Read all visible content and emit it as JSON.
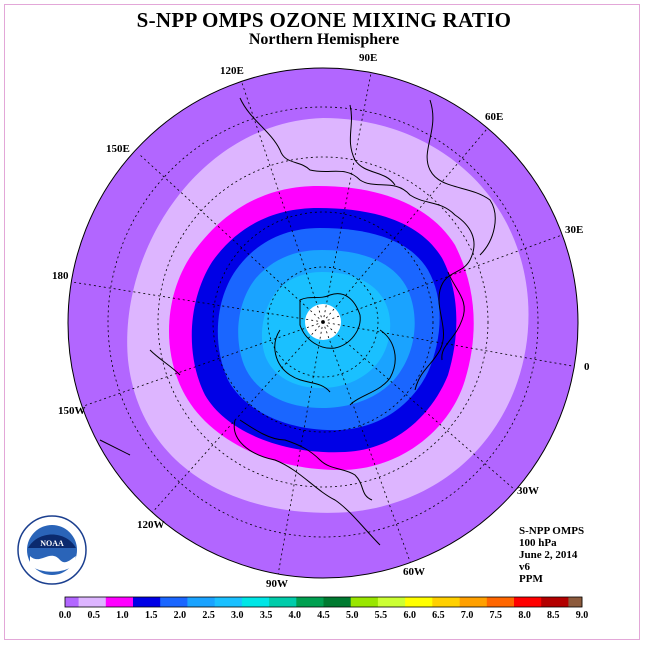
{
  "title": "S-NPP OMPS OZONE MIXING RATIO",
  "subtitle": "Northern Hemisphere",
  "longitude_labels": [
    "120E",
    "90E",
    "60E",
    "150E",
    "30E",
    "180",
    "0",
    "150W",
    "30W",
    "120W",
    "90W",
    "60W"
  ],
  "info": {
    "instrument": "S-NPP OMPS",
    "level": "100 hPa",
    "date": "June 2, 2014",
    "version": "v6",
    "units": "PPM"
  },
  "logo": {
    "text": "NOAA"
  },
  "colorbar": {
    "ticks": [
      "0.0",
      "0.5",
      "1.0",
      "1.5",
      "2.0",
      "2.5",
      "3.0",
      "3.5",
      "4.0",
      "4.5",
      "5.0",
      "5.5",
      "6.0",
      "6.5",
      "7.0",
      "7.5",
      "8.0",
      "8.5",
      "9.0"
    ],
    "colors": [
      "#b266ff",
      "#ddb5ff",
      "#ff00ff",
      "#0000e6",
      "#1a66ff",
      "#1aa3ff",
      "#1ac0ff",
      "#00e6e6",
      "#00ccaa",
      "#00a050",
      "#007a30",
      "#99e600",
      "#ccff33",
      "#ffff00",
      "#ffd000",
      "#ffa000",
      "#ff6600",
      "#ff0000",
      "#b30000",
      "#8c5a3c"
    ]
  },
  "map_colors": {
    "outer": "#b266ff",
    "ring_light": "#ddb5ff",
    "ring_magenta": "#ff00ff",
    "ring_blue": "#0000e6",
    "mid_blue": "#1a66ff",
    "inner_blue": "#1aa3ff",
    "core": "#1ac0ff",
    "pole_gap": "#ffffff"
  }
}
